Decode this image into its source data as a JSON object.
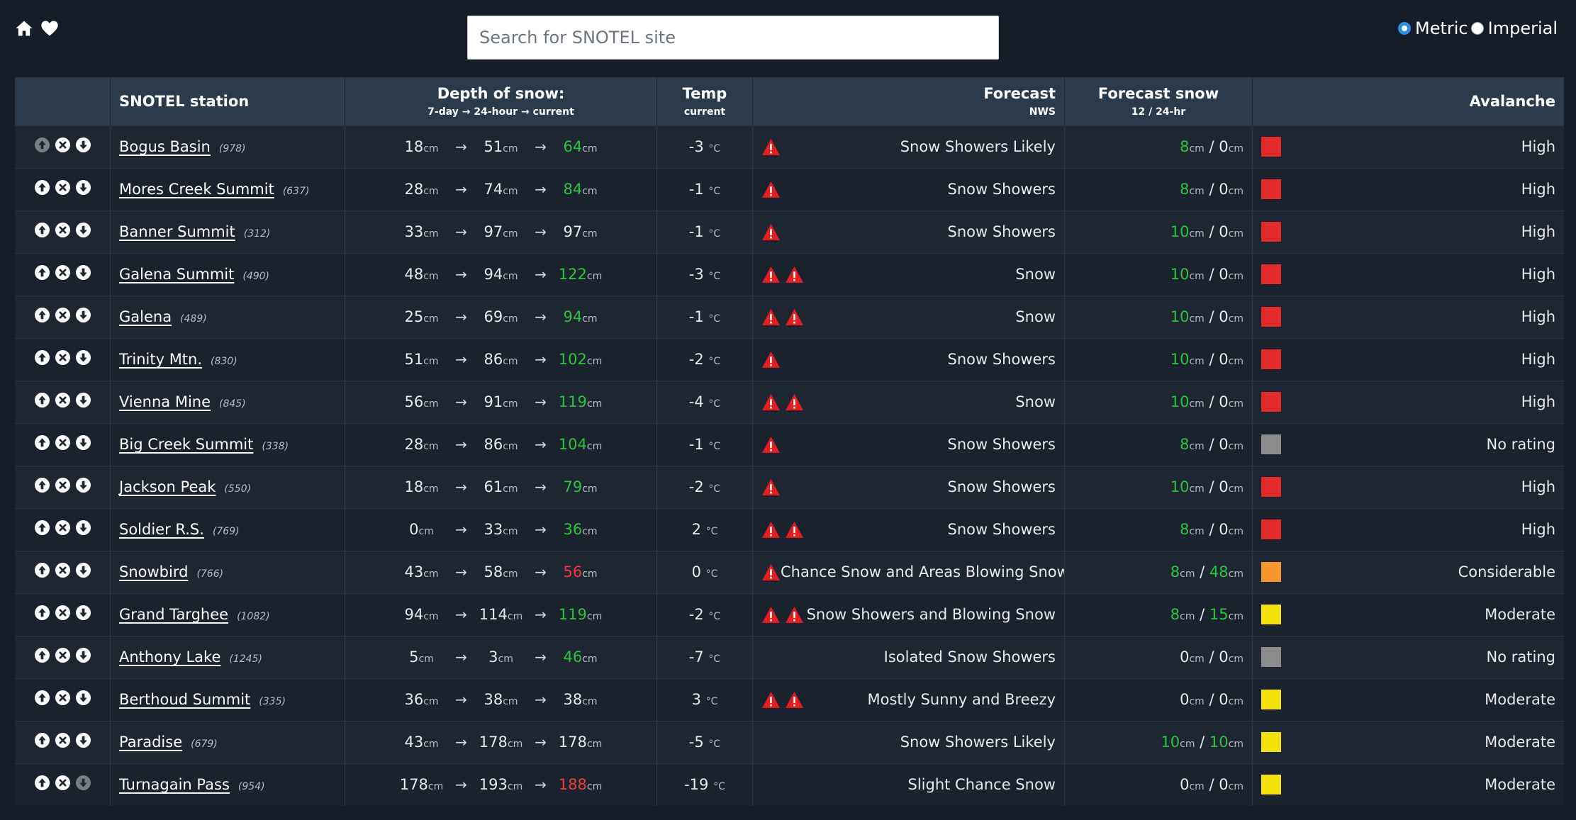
{
  "nav": {
    "home_icon": "home-icon",
    "favorite_icon": "heart-icon"
  },
  "search": {
    "placeholder": "Search for SNOTEL site",
    "value": ""
  },
  "units": {
    "metric_label": "Metric",
    "imperial_label": "Imperial",
    "selected": "Metric"
  },
  "header": {
    "station": "SNOTEL station",
    "depth": "Depth of snow:",
    "depth_sub_a": "7-day",
    "depth_sub_b": "24-hour",
    "depth_sub_c": "current",
    "arrow": "→",
    "temp": "Temp",
    "temp_sub": "current",
    "forecast": "Forecast",
    "forecast_sub": "NWS",
    "fsnow": "Forecast snow",
    "fsnow_sub": "12 / 24-hr",
    "avalanche": "Avalanche"
  },
  "units_text": {
    "cm": "cm",
    "deg": "°C",
    "arrow": "→",
    "slash": "/"
  },
  "colors": {
    "avalanche": {
      "High": "#e22a2a",
      "Considerable": "#f7952e",
      "Moderate": "#f3e20c",
      "No rating": "#8b8b8b"
    },
    "increase": "#28c440",
    "decrease": "#ec3b3b",
    "warning": "#e41e1e"
  },
  "rows": [
    {
      "name": "Bogus Basin",
      "id": "(978)",
      "d7": "18",
      "d24": "51",
      "cur": "64",
      "trend": "up",
      "temp": "-3",
      "warnings": 1,
      "forecast": "Snow Showers Likely",
      "fs12": "8",
      "fs12_color": "green",
      "fs24": "0",
      "fs24_color": "none",
      "avalanche": "High",
      "up_disabled": true,
      "down_disabled": false
    },
    {
      "name": "Mores Creek Summit",
      "id": "(637)",
      "d7": "28",
      "d24": "74",
      "cur": "84",
      "trend": "up",
      "temp": "-1",
      "warnings": 1,
      "forecast": "Snow Showers",
      "fs12": "8",
      "fs12_color": "green",
      "fs24": "0",
      "fs24_color": "none",
      "avalanche": "High",
      "up_disabled": false,
      "down_disabled": false
    },
    {
      "name": "Banner Summit",
      "id": "(312)",
      "d7": "33",
      "d24": "97",
      "cur": "97",
      "trend": "none",
      "temp": "-1",
      "warnings": 1,
      "forecast": "Snow Showers",
      "fs12": "10",
      "fs12_color": "green",
      "fs24": "0",
      "fs24_color": "none",
      "avalanche": "High",
      "up_disabled": false,
      "down_disabled": false
    },
    {
      "name": "Galena Summit",
      "id": "(490)",
      "d7": "48",
      "d24": "94",
      "cur": "122",
      "trend": "up",
      "temp": "-3",
      "warnings": 2,
      "forecast": "Snow",
      "fs12": "10",
      "fs12_color": "green",
      "fs24": "0",
      "fs24_color": "none",
      "avalanche": "High",
      "up_disabled": false,
      "down_disabled": false
    },
    {
      "name": "Galena",
      "id": "(489)",
      "d7": "25",
      "d24": "69",
      "cur": "94",
      "trend": "up",
      "temp": "-1",
      "warnings": 2,
      "forecast": "Snow",
      "fs12": "10",
      "fs12_color": "green",
      "fs24": "0",
      "fs24_color": "none",
      "avalanche": "High",
      "up_disabled": false,
      "down_disabled": false
    },
    {
      "name": "Trinity Mtn.",
      "id": "(830)",
      "d7": "51",
      "d24": "86",
      "cur": "102",
      "trend": "up",
      "temp": "-2",
      "warnings": 1,
      "forecast": "Snow Showers",
      "fs12": "10",
      "fs12_color": "green",
      "fs24": "0",
      "fs24_color": "none",
      "avalanche": "High",
      "up_disabled": false,
      "down_disabled": false
    },
    {
      "name": "Vienna Mine",
      "id": "(845)",
      "d7": "56",
      "d24": "91",
      "cur": "119",
      "trend": "up",
      "temp": "-4",
      "warnings": 2,
      "forecast": "Snow",
      "fs12": "10",
      "fs12_color": "green",
      "fs24": "0",
      "fs24_color": "none",
      "avalanche": "High",
      "up_disabled": false,
      "down_disabled": false
    },
    {
      "name": "Big Creek Summit",
      "id": "(338)",
      "d7": "28",
      "d24": "86",
      "cur": "104",
      "trend": "up",
      "temp": "-1",
      "warnings": 1,
      "forecast": "Snow Showers",
      "fs12": "8",
      "fs12_color": "green",
      "fs24": "0",
      "fs24_color": "none",
      "avalanche": "No rating",
      "up_disabled": false,
      "down_disabled": false
    },
    {
      "name": "Jackson Peak",
      "id": "(550)",
      "d7": "18",
      "d24": "61",
      "cur": "79",
      "trend": "up",
      "temp": "-2",
      "warnings": 1,
      "forecast": "Snow Showers",
      "fs12": "10",
      "fs12_color": "green",
      "fs24": "0",
      "fs24_color": "none",
      "avalanche": "High",
      "up_disabled": false,
      "down_disabled": false
    },
    {
      "name": "Soldier R.S.",
      "id": "(769)",
      "d7": "0",
      "d24": "33",
      "cur": "36",
      "trend": "up",
      "temp": "2",
      "warnings": 2,
      "forecast": "Snow Showers",
      "fs12": "8",
      "fs12_color": "green",
      "fs24": "0",
      "fs24_color": "none",
      "avalanche": "High",
      "up_disabled": false,
      "down_disabled": false
    },
    {
      "name": "Snowbird",
      "id": "(766)",
      "d7": "43",
      "d24": "58",
      "cur": "56",
      "trend": "down",
      "temp": "0",
      "warnings": 1,
      "forecast": "Chance Snow and Areas Blowing Snow",
      "fs12": "8",
      "fs12_color": "green",
      "fs24": "48",
      "fs24_color": "green",
      "avalanche": "Considerable",
      "up_disabled": false,
      "down_disabled": false
    },
    {
      "name": "Grand Targhee",
      "id": "(1082)",
      "d7": "94",
      "d24": "114",
      "cur": "119",
      "trend": "up",
      "temp": "-2",
      "warnings": 2,
      "forecast": "Snow Showers and Blowing Snow",
      "fs12": "8",
      "fs12_color": "green",
      "fs24": "15",
      "fs24_color": "green",
      "avalanche": "Moderate",
      "up_disabled": false,
      "down_disabled": false
    },
    {
      "name": "Anthony Lake",
      "id": "(1245)",
      "d7": "5",
      "d24": "3",
      "cur": "46",
      "trend": "up",
      "temp": "-7",
      "warnings": 0,
      "forecast": "Isolated Snow Showers",
      "fs12": "0",
      "fs12_color": "none",
      "fs24": "0",
      "fs24_color": "none",
      "avalanche": "No rating",
      "up_disabled": false,
      "down_disabled": false
    },
    {
      "name": "Berthoud Summit",
      "id": "(335)",
      "d7": "36",
      "d24": "38",
      "cur": "38",
      "trend": "none",
      "temp": "3",
      "warnings": 2,
      "forecast": "Mostly Sunny and Breezy",
      "fs12": "0",
      "fs12_color": "none",
      "fs24": "0",
      "fs24_color": "none",
      "avalanche": "Moderate",
      "up_disabled": false,
      "down_disabled": false
    },
    {
      "name": "Paradise",
      "id": "(679)",
      "d7": "43",
      "d24": "178",
      "cur": "178",
      "trend": "none",
      "temp": "-5",
      "warnings": 0,
      "forecast": "Snow Showers Likely",
      "fs12": "10",
      "fs12_color": "green",
      "fs24": "10",
      "fs24_color": "green",
      "avalanche": "Moderate",
      "up_disabled": false,
      "down_disabled": false
    },
    {
      "name": "Turnagain Pass",
      "id": "(954)",
      "d7": "178",
      "d24": "193",
      "cur": "188",
      "trend": "down",
      "temp": "-19",
      "warnings": 0,
      "forecast": "Slight Chance Snow",
      "fs12": "0",
      "fs12_color": "none",
      "fs24": "0",
      "fs24_color": "none",
      "avalanche": "Moderate",
      "up_disabled": false,
      "down_disabled": true
    }
  ]
}
